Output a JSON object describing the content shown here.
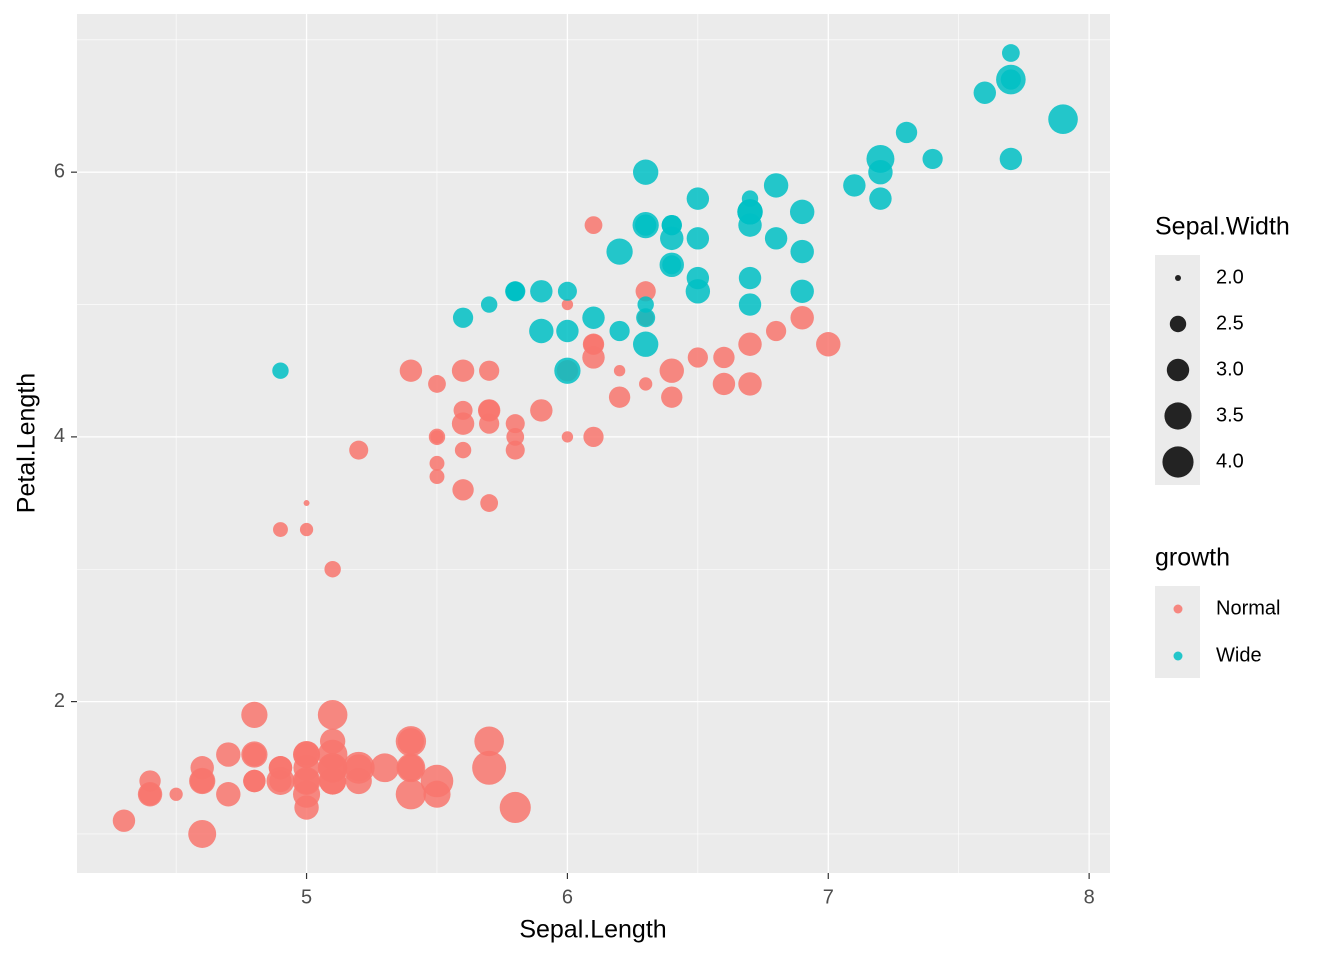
{
  "chart_data": {
    "type": "scatter",
    "x_label": "Sepal.Length",
    "y_label": "Petal.Length",
    "xlim": [
      4.12,
      8.08
    ],
    "ylim": [
      0.705,
      7.195
    ],
    "xticks": [
      5,
      6,
      7,
      8
    ],
    "yticks": [
      2,
      4,
      6
    ],
    "grid": true,
    "size_legend": {
      "title": "Sepal.Width",
      "values": [
        {
          "value": 2,
          "label": "2.0"
        },
        2.5,
        {
          "value": 3,
          "label": "3.0"
        },
        3.5,
        {
          "value": 4,
          "label": "4.0"
        }
      ]
    },
    "color_legend_title": "growth",
    "series": [
      {
        "name": "Normal",
        "color": "#F8766D",
        "x": [
          5.1,
          4.9,
          4.7,
          4.6,
          5,
          5.4,
          4.6,
          5,
          4.4,
          4.9,
          5.4,
          4.8,
          4.8,
          4.3,
          5.8,
          5.7,
          5.4,
          5.1,
          5.7,
          5.1,
          5.4,
          5.1,
          4.6,
          5.1,
          4.8,
          5,
          5,
          5.2,
          5.2,
          4.7,
          4.8,
          5.4,
          5.2,
          5.5,
          4.9,
          5,
          5.5,
          4.9,
          4.4,
          5.1,
          5,
          4.5,
          4.4,
          5,
          5.1,
          4.8,
          5.1,
          4.6,
          5.3,
          5,
          7,
          6.4,
          6.9,
          5.5,
          6.5,
          5.7,
          4.9,
          6.6,
          5.2,
          5,
          5.9,
          6,
          6.1,
          5.6,
          6.7,
          5.6,
          5.8,
          6.2,
          5.6,
          6.1,
          6.3,
          6.1,
          6.4,
          6.6,
          6.8,
          6,
          5.7,
          5.5,
          5.5,
          5.8,
          5.4,
          6.7,
          6.3,
          5.6,
          5.5,
          5.5,
          6.1,
          5.8,
          5,
          5.6,
          5.7,
          5.7,
          6.2,
          5.1,
          5.7,
          6,
          6.3,
          6.1
        ],
        "y": [
          1.4,
          1.4,
          1.3,
          1.5,
          1.4,
          1.7,
          1.4,
          1.5,
          1.4,
          1.5,
          1.5,
          1.6,
          1.4,
          1.1,
          1.2,
          1.5,
          1.3,
          1.4,
          1.7,
          1.5,
          1.7,
          1.5,
          1,
          1.7,
          1.9,
          1.6,
          1.6,
          1.5,
          1.4,
          1.6,
          1.6,
          1.5,
          1.5,
          1.4,
          1.5,
          1.2,
          1.3,
          1.4,
          1.3,
          1.5,
          1.3,
          1.3,
          1.3,
          1.6,
          1.9,
          1.4,
          1.6,
          1.4,
          1.5,
          1.4,
          4.7,
          4.5,
          4.9,
          4,
          4.6,
          4.5,
          3.3,
          4.6,
          3.9,
          3.5,
          4.2,
          4,
          4.7,
          3.6,
          4.4,
          4.5,
          4.1,
          4.5,
          3.9,
          4,
          4.9,
          4.7,
          4.3,
          4.4,
          4.8,
          4.5,
          3.5,
          3.8,
          3.7,
          3.9,
          4.5,
          4.7,
          4.4,
          4.1,
          4,
          4.4,
          4.6,
          4,
          3.3,
          4.2,
          4.2,
          4.2,
          4.3,
          3,
          4.1,
          5,
          5.1,
          5.6
        ],
        "size": [
          3.5,
          3,
          3.2,
          3.1,
          3.6,
          3.9,
          3.4,
          3.4,
          2.9,
          3.1,
          3.7,
          3.4,
          3,
          3,
          4,
          4.4,
          3.9,
          3.5,
          3.8,
          3.8,
          3.4,
          3.7,
          3.6,
          3.3,
          3.4,
          3,
          3.4,
          3.5,
          3.4,
          3.2,
          3.1,
          3.4,
          4.1,
          4.2,
          3.1,
          3.2,
          3.5,
          3.6,
          3,
          3.4,
          3.5,
          2.3,
          3.2,
          3.5,
          3.8,
          3,
          3.8,
          3.2,
          3.7,
          3.3,
          3.2,
          3.2,
          3.1,
          2.3,
          2.8,
          2.8,
          2.4,
          2.9,
          2.7,
          2,
          3,
          2.2,
          2.9,
          2.9,
          3.1,
          3,
          2.7,
          2.2,
          2.5,
          2.8,
          2.5,
          2.8,
          2.9,
          3,
          2.8,
          2.9,
          2.6,
          2.4,
          2.4,
          2.7,
          3,
          3.1,
          2.3,
          3,
          2.5,
          2.6,
          3,
          2.6,
          2.3,
          2.7,
          3,
          2.9,
          2.9,
          2.5,
          2.8,
          2.2,
          2.8,
          2.6
        ]
      },
      {
        "name": "Wide",
        "color": "#00BFC4",
        "x": [
          6.3,
          5.9,
          6.7,
          6,
          6,
          6.3,
          5.8,
          7.1,
          6.3,
          6.5,
          7.6,
          4.9,
          7.3,
          6.7,
          7.2,
          6.5,
          6.4,
          6.8,
          5.7,
          5.8,
          6.4,
          6.5,
          7.7,
          7.7,
          6.9,
          5.6,
          7.7,
          6.3,
          6.7,
          7.2,
          6.2,
          6.1,
          6.4,
          7.2,
          7.4,
          7.9,
          6.4,
          7.7,
          6.3,
          6.4,
          6,
          6.9,
          6.7,
          6.9,
          5.8,
          6.8,
          6.7,
          6.7,
          6.3,
          6.5,
          6.2,
          5.9
        ],
        "y": [
          4.7,
          4.8,
          5,
          5.1,
          4.5,
          6,
          5.1,
          5.9,
          5.6,
          5.8,
          6.6,
          4.5,
          6.3,
          5.8,
          6.1,
          5.1,
          5.3,
          5.5,
          5,
          5.1,
          5.3,
          5.5,
          6.7,
          6.9,
          5.7,
          4.9,
          6.7,
          4.9,
          5.7,
          6,
          4.8,
          4.9,
          5.6,
          5.8,
          6.1,
          6.4,
          5.6,
          6.1,
          5.6,
          5.5,
          4.8,
          5.4,
          5.6,
          5.1,
          5.1,
          5.9,
          5.7,
          5.2,
          5,
          5.2,
          5.4,
          5.1
        ],
        "size": [
          3.3,
          3.2,
          3,
          2.7,
          3.4,
          3.3,
          2.7,
          3,
          2.9,
          3,
          3,
          2.5,
          2.9,
          2.5,
          3.6,
          3.2,
          2.7,
          3,
          2.5,
          2.8,
          3.2,
          3,
          3.8,
          2.6,
          3.2,
          2.8,
          2.8,
          2.7,
          3.3,
          3.2,
          2.8,
          3,
          2.8,
          3,
          2.8,
          3.8,
          2.8,
          3,
          3.4,
          3.1,
          3,
          3.1,
          3.1,
          3.1,
          2.7,
          3.2,
          3.3,
          3,
          2.5,
          3,
          3.4,
          3
        ]
      }
    ]
  }
}
